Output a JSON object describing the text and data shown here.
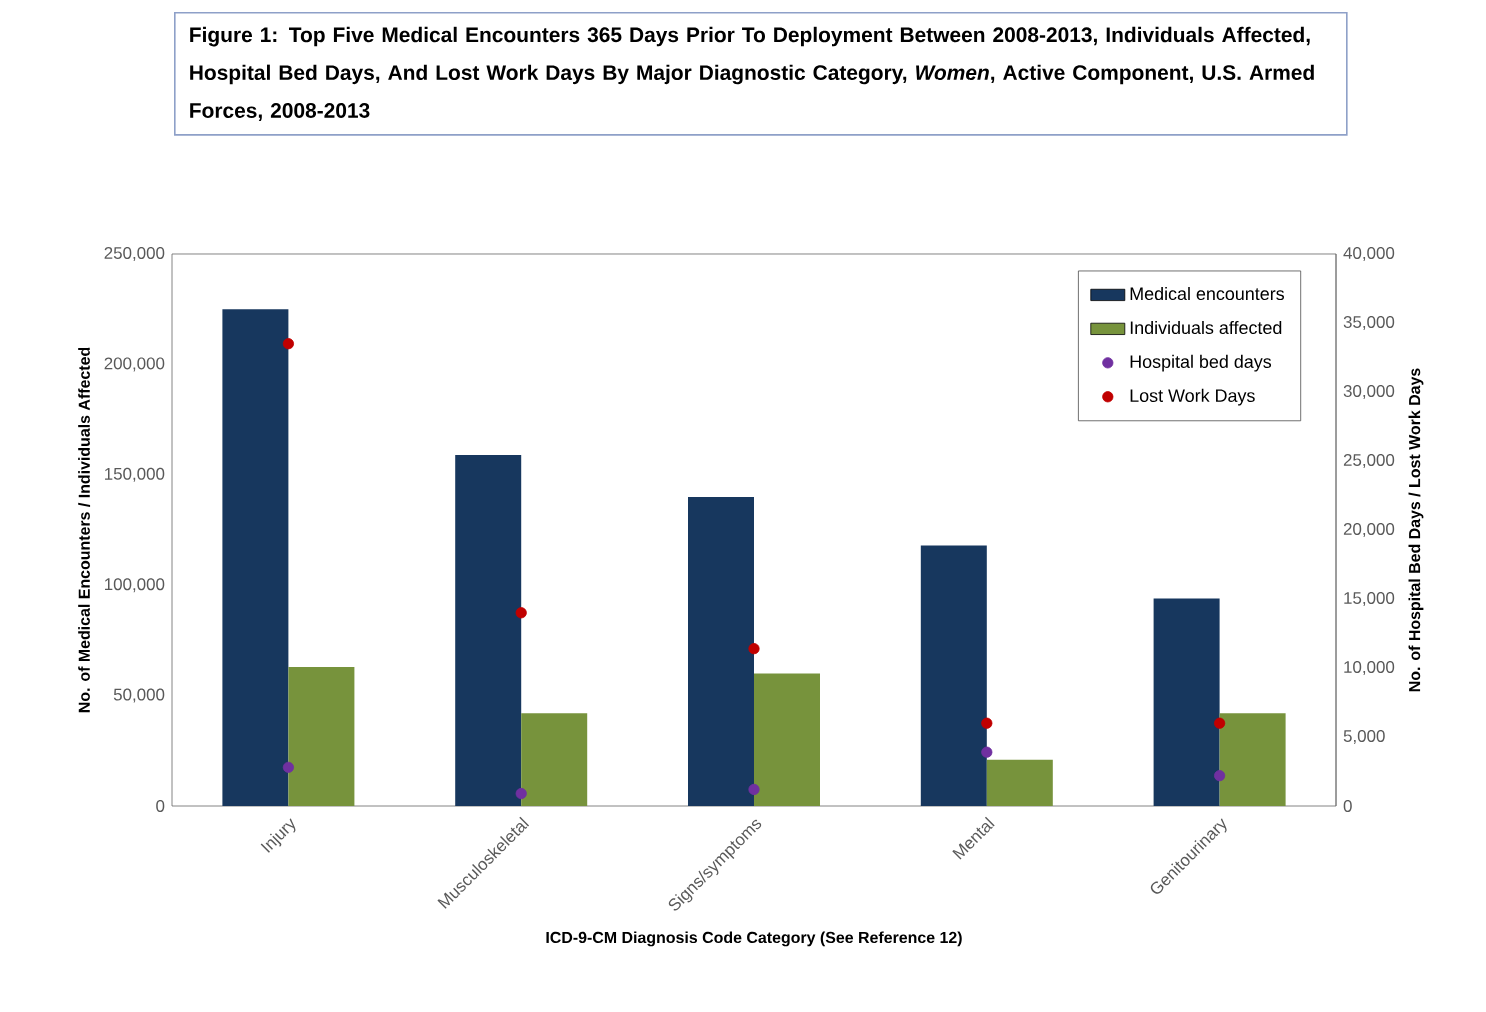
{
  "chart_data": {
    "type": "bar",
    "title": "Figure 1: Top Five Medical Encounters 365 Days Prior To Deployment Between 2008-2013, Individuals Affected, Hospital Bed Days, And Lost Work Days By Major Diagnostic Category, *Women*, Active Component, U.S. Armed Forces, 2008-2013",
    "xlabel": "ICD-9-CM Diagnosis Code Category (See Reference 12)",
    "ylabel": "No. of Medical Encounters / Individuals Affected",
    "y2label": "No. of Hospital Bed Days / Lost Work Days",
    "categories": [
      "Injury",
      "Musculoskeletal",
      "Signs/symptoms",
      "Mental",
      "Genitourinary"
    ],
    "series": [
      {
        "name": "Medical encounters",
        "color": "#17375e",
        "values": [
          225000,
          159000,
          140000,
          118000,
          94000
        ]
      },
      {
        "name": "Individuals affected",
        "color": "#77933c",
        "values": [
          63000,
          42000,
          60000,
          21000,
          42000
        ]
      },
      {
        "name": "Hospital bed days",
        "color": "#7030a0",
        "type": "scatter",
        "axis": "y2",
        "values": [
          2800,
          900,
          1200,
          3900,
          2200
        ]
      },
      {
        "name": "Lost Work Days",
        "color": "#c00000",
        "type": "scatter",
        "axis": "y2",
        "values": [
          33500,
          14000,
          11400,
          6000,
          6000
        ]
      }
    ],
    "ylim": [
      0,
      250000
    ],
    "yticks": [
      0,
      {
        "value": 50000,
        "label": "50,000"
      },
      {
        "value": 100000,
        "label": "100,000"
      },
      {
        "value": 150000,
        "label": "150,000"
      },
      {
        "value": 200000,
        "label": "200,000"
      },
      {
        "value": 250000,
        "label": "250,000"
      }
    ],
    "y2lim": [
      0,
      40000
    ],
    "y2ticks": [
      0,
      {
        "value": 5000,
        "label": "5,000"
      },
      {
        "value": 10000,
        "label": "10,000"
      },
      {
        "value": 15000,
        "label": "15,000"
      },
      {
        "value": 20000,
        "label": "20,000"
      },
      {
        "value": 25000,
        "label": "25,000"
      },
      {
        "value": 30000,
        "label": "30,000"
      },
      {
        "value": 35000,
        "label": "35,000"
      },
      {
        "value": 40000,
        "label": "40,000"
      }
    ],
    "grid": false,
    "legend": "top right"
  }
}
